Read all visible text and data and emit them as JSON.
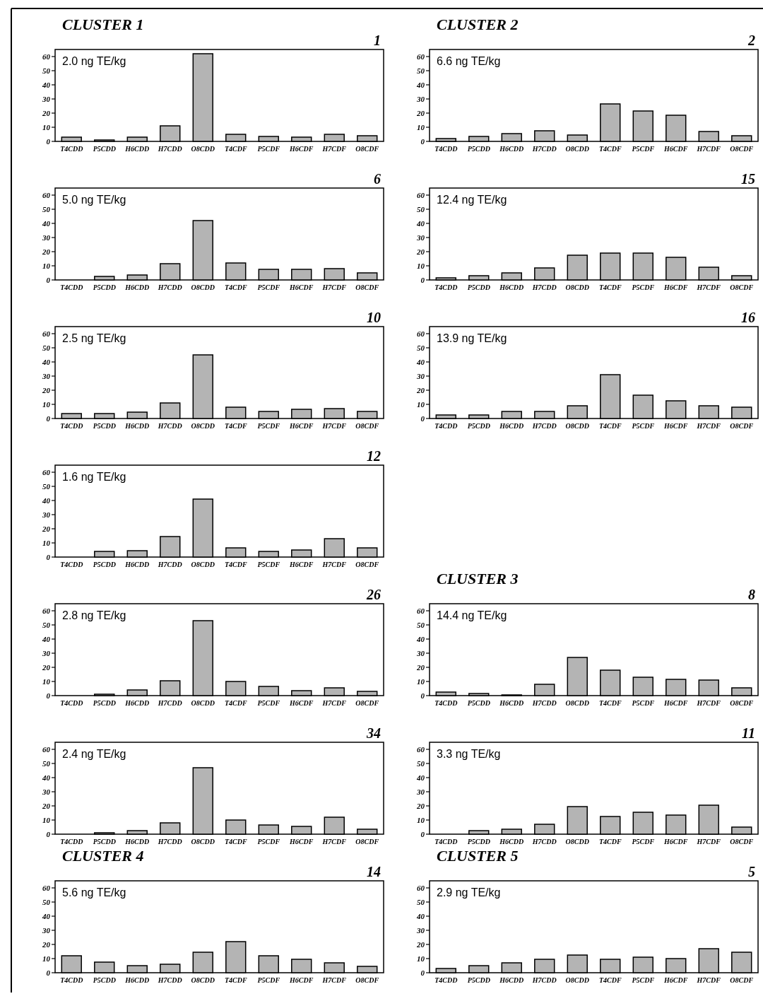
{
  "chart_data": [
    {
      "type": "bar",
      "title": "CLUSTER 1",
      "subtitle": "1",
      "annotations": [
        "2.0 ng TE/kg"
      ],
      "categories": [
        "T4CDD",
        "P5CDD",
        "H6CDD",
        "H7CDD",
        "O8CDD",
        "T4CDF",
        "P5CDF",
        "H6CDF",
        "H7CDF",
        "O8CDF"
      ],
      "values": [
        3,
        1,
        3,
        11,
        62,
        5,
        3.5,
        3,
        5,
        4
      ],
      "color": "#b4b4b4",
      "ylim": [
        0,
        65
      ],
      "yticks": [
        0,
        10,
        20,
        30,
        40,
        50,
        60
      ]
    },
    {
      "type": "bar",
      "title": "CLUSTER 2",
      "subtitle": "2",
      "annotations": [
        "6.6 ng TE/kg"
      ],
      "categories": [
        "T4CDD",
        "P5CDD",
        "H6CDD",
        "H7CDD",
        "O8CDD",
        "T4CDF",
        "P5CDF",
        "H6CDF",
        "H7CDF",
        "O8CDF"
      ],
      "values": [
        2,
        3.5,
        5.5,
        7.5,
        4.5,
        26.5,
        21.5,
        18.5,
        7,
        4
      ],
      "color": "#b4b4b4",
      "ylim": [
        0,
        65
      ],
      "yticks": [
        0,
        10,
        20,
        30,
        40,
        50,
        60
      ]
    },
    {
      "type": "bar",
      "subtitle": "6",
      "annotations": [
        "5.0 ng TE/kg"
      ],
      "categories": [
        "T4CDD",
        "P5CDD",
        "H6CDD",
        "H7CDD",
        "O8CDD",
        "T4CDF",
        "P5CDF",
        "H6CDF",
        "H7CDF",
        "O8CDF"
      ],
      "values": [
        0,
        2.5,
        3.5,
        11.5,
        42,
        12,
        7.5,
        7.5,
        8,
        5
      ],
      "color": "#b4b4b4",
      "ylim": [
        0,
        65
      ],
      "yticks": [
        0,
        10,
        20,
        30,
        40,
        50,
        60
      ]
    },
    {
      "type": "bar",
      "subtitle": "15",
      "annotations": [
        "12.4 ng TE/kg"
      ],
      "categories": [
        "T4CDD",
        "P5CDD",
        "H6CDD",
        "H7CDD",
        "O8CDD",
        "T4CDF",
        "P5CDF",
        "H6CDF",
        "H7CDF",
        "O8CDF"
      ],
      "values": [
        1.5,
        3,
        5,
        8.5,
        17.5,
        19,
        19,
        16,
        9,
        3
      ],
      "color": "#b4b4b4",
      "ylim": [
        0,
        65
      ],
      "yticks": [
        0,
        10,
        20,
        30,
        40,
        50,
        60
      ]
    },
    {
      "type": "bar",
      "subtitle": "10",
      "annotations": [
        "2.5 ng TE/kg"
      ],
      "categories": [
        "T4CDD",
        "P5CDD",
        "H6CDD",
        "H7CDD",
        "O8CDD",
        "T4CDF",
        "P5CDF",
        "H6CDF",
        "H7CDF",
        "O8CDF"
      ],
      "values": [
        3.5,
        3.5,
        4.5,
        11,
        45,
        8,
        5,
        6.5,
        7,
        5
      ],
      "color": "#b4b4b4",
      "ylim": [
        0,
        65
      ],
      "yticks": [
        0,
        10,
        20,
        30,
        40,
        50,
        60
      ]
    },
    {
      "type": "bar",
      "subtitle": "16",
      "annotations": [
        "13.9 ng TE/kg"
      ],
      "categories": [
        "T4CDD",
        "P5CDD",
        "H6CDD",
        "H7CDD",
        "O8CDD",
        "T4CDF",
        "P5CDF",
        "H6CDF",
        "H7CDF",
        "O8CDF"
      ],
      "values": [
        2.5,
        2.5,
        5,
        5,
        9,
        31,
        16.5,
        12.5,
        9,
        8
      ],
      "color": "#b4b4b4",
      "ylim": [
        0,
        65
      ],
      "yticks": [
        0,
        10,
        20,
        30,
        40,
        50,
        60
      ]
    },
    {
      "type": "bar",
      "subtitle": "12",
      "annotations": [
        "1.6 ng TE/kg"
      ],
      "categories": [
        "T4CDD",
        "P5CDD",
        "H6CDD",
        "H7CDD",
        "O8CDD",
        "T4CDF",
        "P5CDF",
        "H6CDF",
        "H7CDF",
        "O8CDF"
      ],
      "values": [
        0,
        4,
        4.5,
        14.5,
        41,
        6.5,
        4,
        5,
        13,
        6.5
      ],
      "color": "#b4b4b4",
      "ylim": [
        0,
        65
      ],
      "yticks": [
        0,
        10,
        20,
        30,
        40,
        50,
        60
      ]
    },
    {
      "type": "bar",
      "subtitle": "26",
      "annotations": [
        "2.8 ng TE/kg"
      ],
      "categories": [
        "T4CDD",
        "P5CDD",
        "H6CDD",
        "H7CDD",
        "O8CDD",
        "T4CDF",
        "P5CDF",
        "H6CDF",
        "H7CDF",
        "O8CDF"
      ],
      "values": [
        0,
        1,
        4,
        10.5,
        53,
        10,
        6.5,
        3.5,
        5.5,
        3
      ],
      "color": "#b4b4b4",
      "ylim": [
        0,
        65
      ],
      "yticks": [
        0,
        10,
        20,
        30,
        40,
        50,
        60
      ]
    },
    {
      "type": "bar",
      "title": "CLUSTER 3",
      "subtitle": "8",
      "annotations": [
        "14.4 ng TE/kg"
      ],
      "categories": [
        "T4CDD",
        "P5CDD",
        "H6CDD",
        "H7CDD",
        "O8CDD",
        "T4CDF",
        "P5CDF",
        "H6CDF",
        "H7CDF",
        "O8CDF"
      ],
      "values": [
        2.5,
        1.5,
        0.5,
        8,
        27,
        18,
        13,
        11.5,
        11,
        5.5
      ],
      "color": "#b4b4b4",
      "ylim": [
        0,
        65
      ],
      "yticks": [
        0,
        10,
        20,
        30,
        40,
        50,
        60
      ]
    },
    {
      "type": "bar",
      "subtitle": "34",
      "annotations": [
        "2.4 ng TE/kg"
      ],
      "categories": [
        "T4CDD",
        "P5CDD",
        "H6CDD",
        "H7CDD",
        "O8CDD",
        "T4CDF",
        "P5CDF",
        "H6CDF",
        "H7CDF",
        "O8CDF"
      ],
      "values": [
        0,
        1,
        2.5,
        8,
        47,
        10,
        6.5,
        5.5,
        12,
        3.5
      ],
      "color": "#b4b4b4",
      "ylim": [
        0,
        65
      ],
      "yticks": [
        0,
        10,
        20,
        30,
        40,
        50,
        60
      ]
    },
    {
      "type": "bar",
      "subtitle": "11",
      "annotations": [
        "3.3 ng TE/kg"
      ],
      "categories": [
        "T4CDD",
        "P5CDD",
        "H6CDD",
        "H7CDD",
        "O8CDD",
        "T4CDF",
        "P5CDF",
        "H6CDF",
        "H7CDF",
        "O8CDF"
      ],
      "values": [
        0,
        2.5,
        3.5,
        7,
        19.5,
        12.5,
        15.5,
        13.5,
        20.5,
        5
      ],
      "color": "#b4b4b4",
      "ylim": [
        0,
        65
      ],
      "yticks": [
        0,
        10,
        20,
        30,
        40,
        50,
        60
      ]
    },
    {
      "type": "bar",
      "title": "CLUSTER 4",
      "subtitle": "14",
      "annotations": [
        "5.6 ng TE/kg"
      ],
      "categories": [
        "T4CDD",
        "P5CDD",
        "H6CDD",
        "H7CDD",
        "O8CDD",
        "T4CDF",
        "P5CDF",
        "H6CDF",
        "H7CDF",
        "O8CDF"
      ],
      "values": [
        12,
        7.5,
        5,
        6,
        14.5,
        22,
        12,
        9.5,
        7,
        4.5
      ],
      "color": "#b4b4b4",
      "ylim": [
        0,
        65
      ],
      "yticks": [
        0,
        10,
        20,
        30,
        40,
        50,
        60
      ]
    },
    {
      "type": "bar",
      "title": "CLUSTER 5",
      "subtitle": "5",
      "annotations": [
        "2.9 ng TE/kg"
      ],
      "categories": [
        "T4CDD",
        "P5CDD",
        "H6CDD",
        "H7CDD",
        "O8CDD",
        "T4CDF",
        "P5CDF",
        "H6CDF",
        "H7CDF",
        "O8CDF"
      ],
      "values": [
        3,
        5,
        7,
        9.5,
        12.5,
        9.5,
        11,
        10,
        17,
        14.5
      ],
      "color": "#b4b4b4",
      "ylim": [
        0,
        65
      ],
      "yticks": [
        0,
        10,
        20,
        30,
        40,
        50,
        60
      ]
    }
  ]
}
